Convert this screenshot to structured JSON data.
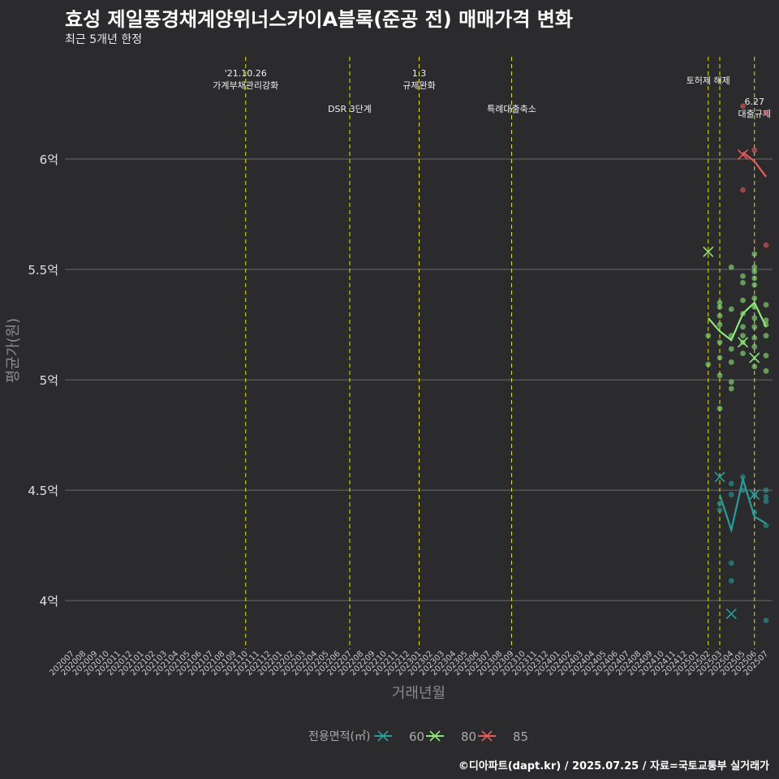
{
  "header": {
    "title": "효성 제일풍경채계양위너스카이A블록(준공 전) 매매가격 변화",
    "subtitle": "최근 5개년 한정"
  },
  "footer": {
    "credit": "©디아파트(dapt.kr) / 2025.07.25 / 자료=국토교통부 실거래가"
  },
  "colors": {
    "background": "#2b2b2d",
    "grid": "#6a6a6a",
    "event_line": "#e6e600",
    "s60": "#2a9d99",
    "s80": "#8ee67a",
    "s85": "#e85c5c"
  },
  "chart_data": {
    "type": "line",
    "title": "효성 제일풍경채계양위너스카이A블록(준공 전) 매매가격 변화",
    "xlabel": "거래년월",
    "ylabel": "평균가(원)",
    "ylim": [
      3.78,
      6.5
    ],
    "yticks": [
      4,
      4.5,
      5,
      5.5,
      6
    ],
    "ytick_labels": [
      "4억",
      "4.5억",
      "5억",
      "5.5억",
      "6억"
    ],
    "categories": [
      "202007",
      "202008",
      "202009",
      "202010",
      "202011",
      "202012",
      "202101",
      "202102",
      "202103",
      "202104",
      "202105",
      "202106",
      "202107",
      "202108",
      "202109",
      "202110",
      "202111",
      "202112",
      "202201",
      "202202",
      "202203",
      "202204",
      "202205",
      "202206",
      "202207",
      "202208",
      "202209",
      "202210",
      "202211",
      "202212",
      "202301",
      "202302",
      "202303",
      "202304",
      "202305",
      "202306",
      "202307",
      "202308",
      "202309",
      "202310",
      "202311",
      "202312",
      "202401",
      "202402",
      "202403",
      "202404",
      "202405",
      "202406",
      "202407",
      "202408",
      "202409",
      "202410",
      "202411",
      "202412",
      "202501",
      "202502",
      "202503",
      "202504",
      "202505",
      "202506",
      "202507"
    ],
    "events": [
      {
        "month": "202110",
        "label": "'21.10.26\n가계부채관리강화",
        "row": 0
      },
      {
        "month": "202207",
        "label": "DSR 3단계",
        "row": 1
      },
      {
        "month": "202301",
        "label": "1.3\n규제완화",
        "row": 0
      },
      {
        "month": "202309",
        "label": "특례대출축소",
        "row": 1
      },
      {
        "month": "202502",
        "label": "토허제 해제",
        "row": 0
      },
      {
        "month": "202503",
        "label": "",
        "row": 0
      },
      {
        "month": "202506",
        "label": "6.27\n대출규제",
        "row": 1
      }
    ],
    "legend": {
      "title": "전용면적(㎡)",
      "position": "bottom"
    },
    "series": [
      {
        "name": "60",
        "color": "#2a9d99",
        "line": [
          [
            "202503",
            4.48
          ],
          [
            "202504",
            4.32
          ],
          [
            "202505",
            4.55
          ],
          [
            "202506",
            4.38
          ],
          [
            "202507",
            4.35
          ]
        ],
        "points": [
          [
            "202503",
            4.41
          ],
          [
            "202503",
            4.44
          ],
          [
            "202504",
            4.17
          ],
          [
            "202504",
            4.09
          ],
          [
            "202504",
            4.48
          ],
          [
            "202504",
            4.53
          ],
          [
            "202505",
            4.5
          ],
          [
            "202505",
            4.56
          ],
          [
            "202506",
            4.4
          ],
          [
            "202506",
            4.48
          ],
          [
            "202507",
            4.5
          ],
          [
            "202507",
            4.47
          ],
          [
            "202507",
            4.45
          ],
          [
            "202507",
            4.34
          ],
          [
            "202507",
            3.91
          ]
        ],
        "cross": [
          [
            "202503",
            4.56
          ],
          [
            "202504",
            3.94
          ],
          [
            "202506",
            4.48
          ]
        ]
      },
      {
        "name": "80",
        "color": "#8ee67a",
        "line": [
          [
            "202502",
            5.28
          ],
          [
            "202503",
            5.22
          ],
          [
            "202504",
            5.18
          ],
          [
            "202505",
            5.3
          ],
          [
            "202506",
            5.35
          ],
          [
            "202507",
            5.24
          ]
        ],
        "points": [
          [
            "202502",
            5.2
          ],
          [
            "202502",
            5.07
          ],
          [
            "202503",
            5.35
          ],
          [
            "202503",
            5.33
          ],
          [
            "202503",
            5.29
          ],
          [
            "202503",
            5.25
          ],
          [
            "202503",
            5.17
          ],
          [
            "202503",
            5.1
          ],
          [
            "202503",
            5.02
          ],
          [
            "202503",
            4.87
          ],
          [
            "202504",
            5.51
          ],
          [
            "202504",
            5.32
          ],
          [
            "202504",
            5.2
          ],
          [
            "202504",
            5.14
          ],
          [
            "202504",
            5.08
          ],
          [
            "202504",
            4.99
          ],
          [
            "202504",
            4.96
          ],
          [
            "202505",
            5.47
          ],
          [
            "202505",
            5.44
          ],
          [
            "202505",
            5.36
          ],
          [
            "202505",
            5.3
          ],
          [
            "202505",
            5.24
          ],
          [
            "202505",
            5.2
          ],
          [
            "202505",
            5.17
          ],
          [
            "202505",
            5.12
          ],
          [
            "202506",
            5.57
          ],
          [
            "202506",
            5.51
          ],
          [
            "202506",
            5.49
          ],
          [
            "202506",
            5.46
          ],
          [
            "202506",
            5.43
          ],
          [
            "202506",
            5.37
          ],
          [
            "202506",
            5.33
          ],
          [
            "202506",
            5.28
          ],
          [
            "202506",
            5.24
          ],
          [
            "202506",
            5.19
          ],
          [
            "202506",
            5.15
          ],
          [
            "202506",
            5.06
          ],
          [
            "202507",
            5.34
          ],
          [
            "202507",
            5.27
          ],
          [
            "202507",
            5.25
          ],
          [
            "202507",
            5.2
          ],
          [
            "202507",
            5.11
          ],
          [
            "202507",
            5.04
          ]
        ],
        "cross": [
          [
            "202502",
            5.58
          ],
          [
            "202505",
            5.17
          ],
          [
            "202506",
            5.1
          ]
        ]
      },
      {
        "name": "85",
        "color": "#e85c5c",
        "line": [
          [
            "202505",
            6.03
          ],
          [
            "202506",
            5.99
          ],
          [
            "202507",
            5.92
          ]
        ],
        "points": [
          [
            "202505",
            6.24
          ],
          [
            "202505",
            5.86
          ],
          [
            "202506",
            6.04
          ],
          [
            "202507",
            6.21
          ],
          [
            "202507",
            5.61
          ]
        ],
        "cross": [
          [
            "202505",
            6.02
          ]
        ]
      }
    ]
  }
}
